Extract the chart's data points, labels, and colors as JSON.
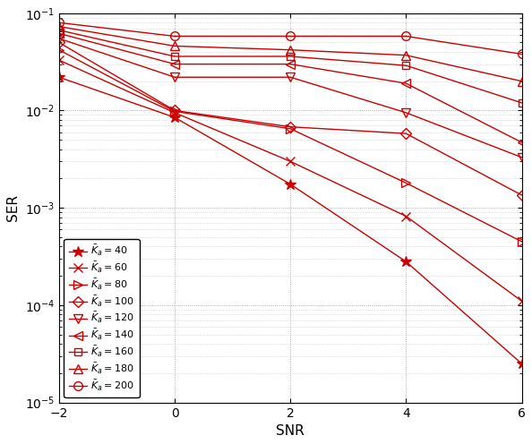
{
  "snr": [
    -2,
    0,
    2,
    4,
    6
  ],
  "series": [
    {
      "label": "$\\bar{K}_a =40$",
      "marker": "star",
      "values": [
        0.022,
        0.0085,
        0.00175,
        0.00028,
        2.5e-05
      ]
    },
    {
      "label": "$\\bar{K}_a =60$",
      "marker": "x",
      "values": [
        0.033,
        0.0095,
        0.003,
        0.00082,
        0.00011
      ]
    },
    {
      "label": "$\\bar{K}_a =80$",
      "marker": "tri_right",
      "values": [
        0.042,
        0.0098,
        0.0065,
        0.0018,
        0.00045
      ]
    },
    {
      "label": "$\\bar{K}_a =100$",
      "marker": "diamond",
      "values": [
        0.05,
        0.01,
        0.0068,
        0.0058,
        0.00135
      ]
    },
    {
      "label": "$\\bar{K}_a =120$",
      "marker": "tri_down",
      "values": [
        0.055,
        0.022,
        0.022,
        0.0095,
        0.0033
      ]
    },
    {
      "label": "$\\bar{K}_a =140$",
      "marker": "tri_left",
      "values": [
        0.062,
        0.03,
        0.03,
        0.019,
        0.0047
      ]
    },
    {
      "label": "$\\bar{K}_a =160$",
      "marker": "square",
      "values": [
        0.067,
        0.036,
        0.036,
        0.029,
        0.012
      ]
    },
    {
      "label": "$\\bar{K}_a =180$",
      "marker": "tri_up",
      "values": [
        0.073,
        0.046,
        0.042,
        0.037,
        0.02
      ]
    },
    {
      "label": "$\\bar{K}_a =200$",
      "marker": "circle",
      "values": [
        0.08,
        0.058,
        0.058,
        0.058,
        0.038
      ]
    }
  ],
  "color": "#cc0000",
  "xlabel": "SNR",
  "ylabel": "SER",
  "xlim": [
    -2,
    6
  ],
  "ylim_log": [
    -5,
    -1
  ],
  "xticks": [
    -2,
    0,
    2,
    4,
    6
  ],
  "figsize": [
    5.94,
    4.96
  ],
  "dpi": 100
}
